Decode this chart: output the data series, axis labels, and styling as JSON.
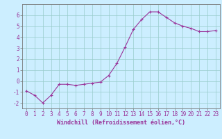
{
  "x": [
    0,
    1,
    2,
    3,
    4,
    5,
    6,
    7,
    8,
    9,
    10,
    11,
    12,
    13,
    14,
    15,
    16,
    17,
    18,
    19,
    20,
    21,
    22,
    23
  ],
  "y": [
    -0.9,
    -1.3,
    -2.0,
    -1.3,
    -0.3,
    -0.3,
    -0.4,
    -0.3,
    -0.2,
    -0.1,
    0.5,
    1.6,
    3.1,
    4.7,
    5.6,
    6.3,
    6.3,
    5.8,
    5.3,
    5.0,
    4.8,
    4.5,
    4.5,
    4.6
  ],
  "line_color": "#993399",
  "marker": "+",
  "marker_size": 3,
  "marker_linewidth": 0.8,
  "bg_color": "#cceeff",
  "grid_color": "#99cccc",
  "xlabel": "Windchill (Refroidissement éolien,°C)",
  "xlim": [
    -0.5,
    23.5
  ],
  "ylim": [
    -2.5,
    7.0
  ],
  "yticks": [
    -2,
    -1,
    0,
    1,
    2,
    3,
    4,
    5,
    6
  ],
  "xticks": [
    0,
    1,
    2,
    3,
    4,
    5,
    6,
    7,
    8,
    9,
    10,
    11,
    12,
    13,
    14,
    15,
    16,
    17,
    18,
    19,
    20,
    21,
    22,
    23
  ],
  "tick_label_color": "#993399",
  "label_color": "#993399",
  "label_fontsize": 6,
  "tick_fontsize": 5.5,
  "line_width": 0.8,
  "spine_color": "#777777"
}
